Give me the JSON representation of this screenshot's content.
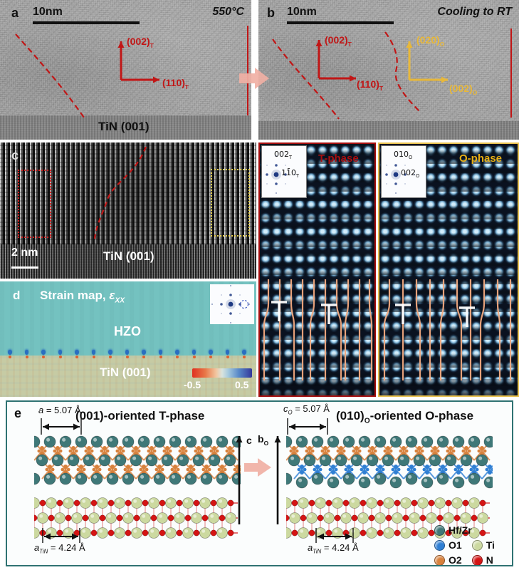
{
  "colors": {
    "accent_red": "#c11616",
    "dark_red": "#a50f0f",
    "accent_yellow": "#e8b83a",
    "ophase_text": "#e7ae14",
    "trace_orange": "#f2aa80",
    "panel_e_border": "#2f7272",
    "pink_arrow": "#f0b0a4",
    "strain_hzo": "#74c2c0",
    "strain_tin": "#c6cba4",
    "fft_blue": "#14307c"
  },
  "panel_a": {
    "label": "a",
    "scalebar": "10nm",
    "condition": "550°C",
    "axis_v": {
      "text": "(002)",
      "sub": "T"
    },
    "axis_h": {
      "text": "(110)",
      "sub": "T"
    },
    "substrate": "TiN (001)"
  },
  "panel_b": {
    "label": "b",
    "scalebar": "10nm",
    "condition": "Cooling to RT",
    "axis_v_red": {
      "text": "(002)",
      "sub": "T"
    },
    "axis_h_red": {
      "text": "(110)",
      "sub": "T"
    },
    "axis_v_yel": {
      "text": "(020)",
      "sub": "O"
    },
    "axis_h_yel": {
      "text": "(002)",
      "sub": "O"
    }
  },
  "panel_c": {
    "label": "c",
    "scalebar": "2 nm",
    "substrate": "TiN (001)"
  },
  "panel_d": {
    "label": "d",
    "title_prefix": "Strain map, ",
    "epsilon": "ε",
    "epsilon_sub": "XX",
    "film": "HZO",
    "substrate": "TiN (001)",
    "scale_min": "-0.5",
    "scale_max": "0.5"
  },
  "panel_t": {
    "name": "T-phase",
    "fft_labels": [
      {
        "text": "002",
        "sub": "T"
      },
      {
        "text": "11̄0",
        "sub": "T"
      }
    ]
  },
  "panel_o": {
    "name": "O-phase",
    "fft_labels": [
      {
        "text": "010",
        "sub": "O"
      },
      {
        "text": "002",
        "sub": "O"
      }
    ]
  },
  "panel_e": {
    "label": "e",
    "left": {
      "dim_var": "a",
      "dim_eq": " = 5.07 Å",
      "title": "(001)-oriented T-phase",
      "tin_var": "a",
      "tin_sub": "TiN",
      "tin_eq": " = 4.24 Å"
    },
    "right": {
      "dim_var": "c",
      "dim_sub": "O",
      "dim_eq": " = 5.07 Å",
      "title_pre": "(010)",
      "title_sub": "O",
      "title_post": "-oriented O-phase",
      "tin_var": "a",
      "tin_sub": "TiN",
      "tin_eq": " = 4.24 Å"
    },
    "axis_c": "c",
    "axis_b": "b",
    "axis_b_sub": "O",
    "legend": [
      {
        "label": "Hf/Zr",
        "color": "#3f7878"
      },
      {
        "label": "O1",
        "color": "#2f7fd4"
      },
      {
        "label": "Ti",
        "color": "#ccd9a0"
      },
      {
        "label": "O2",
        "color": "#d8813c"
      },
      {
        "label": "N",
        "color": "#d41414"
      }
    ]
  }
}
